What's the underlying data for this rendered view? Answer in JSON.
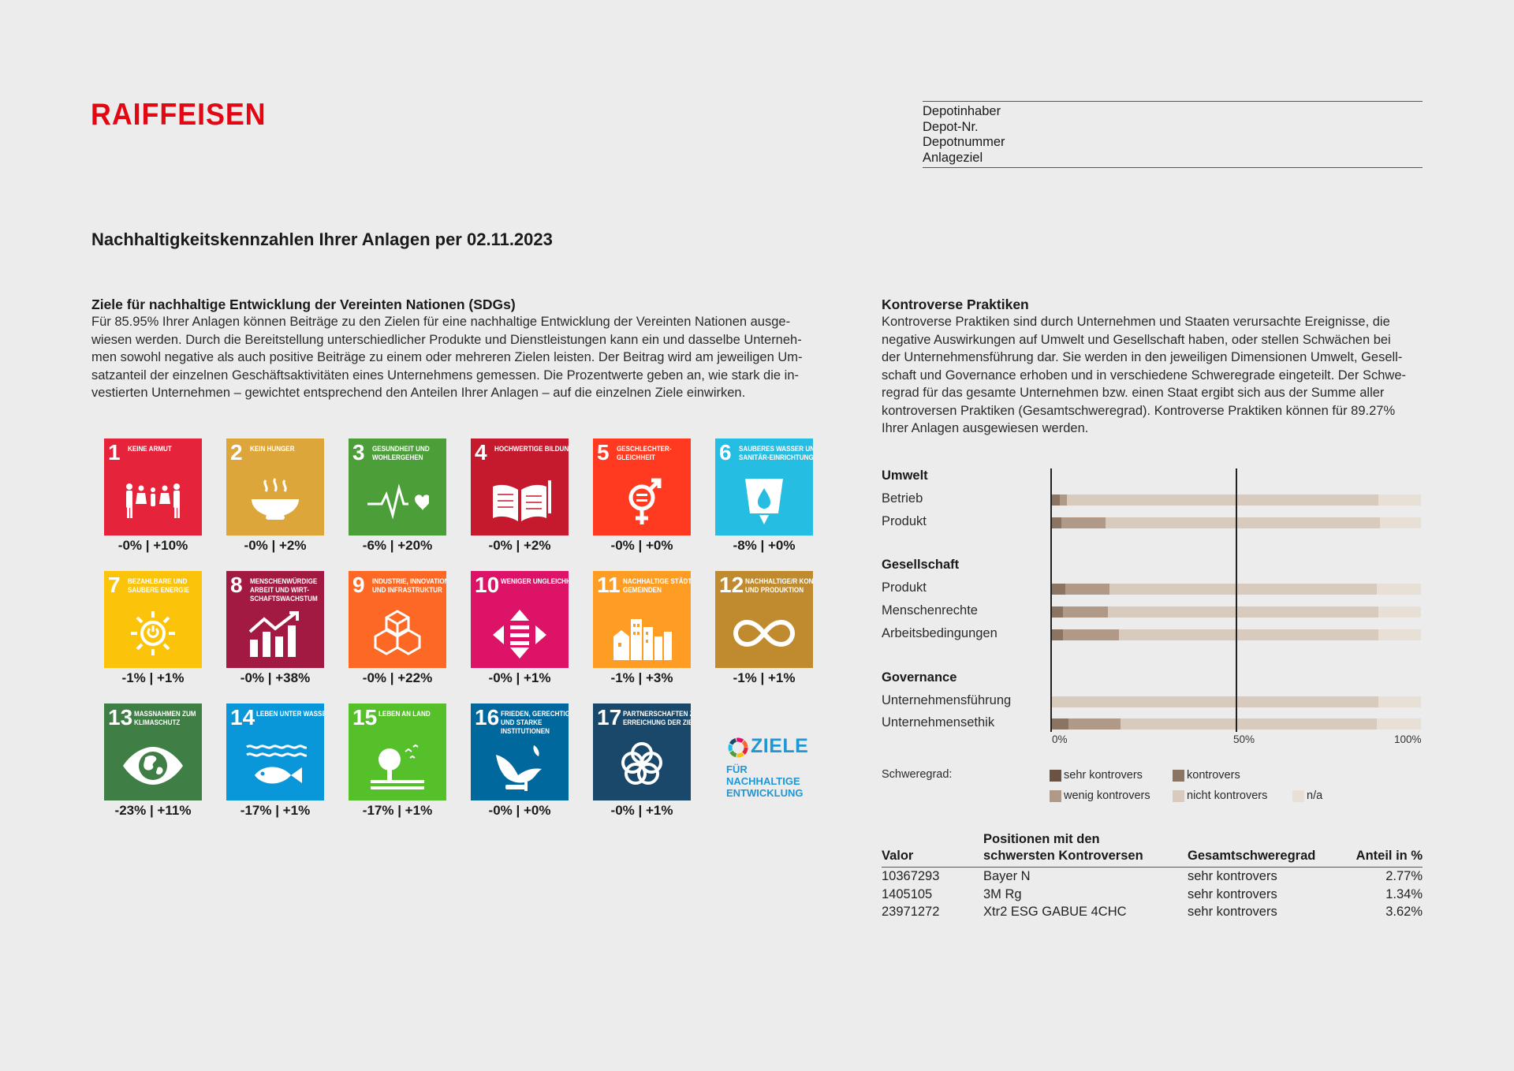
{
  "logo": "RAIFFEISEN",
  "depot": {
    "lines": [
      "Depotinhaber",
      "Depot-Nr.",
      "Depotnummer",
      "Anlageziel"
    ]
  },
  "page_title": "Nachhaltigkeitskennzahlen Ihrer Anlagen per 02.11.2023",
  "sdg": {
    "title": "Ziele für nachhaltige Entwicklung der Vereinten Nationen (SDGs)",
    "text_lines": [
      "Für 85.95% Ihrer Anlagen können Beiträge zu den Zielen für eine nachhaltige Entwicklung der Vereinten Nationen ausge-",
      "wiesen werden. Durch die Bereitstellung unterschiedlicher Produkte und Dienstleistungen kann ein und dasselbe Unterneh-",
      "men sowohl negative als auch positive Beiträge zu einem oder mehreren Zielen leisten. Der Beitrag wird am jeweiligen Um-",
      "satzanteil der einzelnen Geschäftsaktivitäten eines Unternehmens gemessen. Die Prozentwerte geben an, wie stark die in-",
      "vestierten Unternehmen – gewichtet entsprechend den Anteilen Ihrer Anlagen – auf die einzelnen Ziele einwirken."
    ],
    "goals": [
      {
        "num": "1",
        "label": "Keine Armut",
        "color": "#e5243b",
        "icon": "family-icon",
        "value": "-0% | +10%"
      },
      {
        "num": "2",
        "label": "Kein Hunger",
        "color": "#dda63a",
        "icon": "bowl-icon",
        "value": "-0% | +2%"
      },
      {
        "num": "3",
        "label": "Gesundheit und Wohlergehen",
        "color": "#4c9f38",
        "icon": "heartbeat-icon",
        "value": "-6% | +20%"
      },
      {
        "num": "4",
        "label": "Hochwertige Bildung",
        "color": "#c5192d",
        "icon": "book-icon",
        "value": "-0% | +2%"
      },
      {
        "num": "5",
        "label": "Geschlechter-gleichheit",
        "color": "#ff3a21",
        "icon": "gender-icon",
        "value": "-0% | +0%"
      },
      {
        "num": "6",
        "label": "Sauberes Wasser und Sanitär-einrichtungen",
        "color": "#26bde2",
        "icon": "water-icon",
        "value": "-8% | +0%"
      },
      {
        "num": "7",
        "label": "Bezahlbare und saubere Energie",
        "color": "#fcc30b",
        "icon": "sun-icon",
        "value": "-1% | +1%"
      },
      {
        "num": "8",
        "label": "Menschenwürdige Arbeit und Wirt-schaftswachstum",
        "color": "#a21942",
        "icon": "growth-chart-icon",
        "value": "-0% | +38%"
      },
      {
        "num": "9",
        "label": "Industrie, Innovation und Infrastruktur",
        "color": "#fd6925",
        "icon": "cubes-icon",
        "value": "-0% | +22%"
      },
      {
        "num": "10",
        "label": "Weniger Ungleichheiten",
        "color": "#dd1367",
        "icon": "equality-icon",
        "value": "-0% | +1%"
      },
      {
        "num": "11",
        "label": "Nachhaltige Städte und Gemeinden",
        "color": "#fd9d24",
        "icon": "city-icon",
        "value": "-1% | +3%"
      },
      {
        "num": "12",
        "label": "Nachhaltige/r Konsum und Produktion",
        "color": "#bf8b2e",
        "icon": "infinity-icon",
        "value": "-1% | +1%"
      },
      {
        "num": "13",
        "label": "Massnahmen zum Klimaschutz",
        "color": "#3f7e44",
        "icon": "earth-eye-icon",
        "value": "-23% | +11%"
      },
      {
        "num": "14",
        "label": "Leben unter Wasser",
        "color": "#0a97d9",
        "icon": "fish-icon",
        "value": "-17% | +1%"
      },
      {
        "num": "15",
        "label": "Leben an Land",
        "color": "#56c02b",
        "icon": "tree-icon",
        "value": "-17% | +1%"
      },
      {
        "num": "16",
        "label": "Frieden, Gerechtigkeit und starke Institutionen",
        "color": "#00689d",
        "icon": "dove-icon",
        "value": "-0% | +0%"
      },
      {
        "num": "17",
        "label": "Partnerschaften zur Erreichung der Ziele",
        "color": "#19486a",
        "icon": "rings-icon",
        "value": "-0% | +1%"
      }
    ],
    "ziele_logo": {
      "line1": "ZIELE",
      "line2": "FÜR NACHHALTIGE",
      "line3": "ENTWICKLUNG"
    }
  },
  "controversies": {
    "title": "Kontroverse Praktiken",
    "text_lines": [
      "Kontroverse Praktiken sind durch Unternehmen und Staaten verursachte Ereignisse, die",
      "negative Auswirkungen auf Umwelt und Gesellschaft haben, oder stellen Schwächen bei",
      "der Unternehmensführung dar. Sie werden in den jeweiligen Dimensionen Umwelt, Gesell-",
      "schaft und Governance erhoben und in verschiedene Schweregrade eingeteilt. Der Schwe-",
      "regrad für das gesamte Unternehmen bzw. einen Staat ergibt sich aus der Summe aller",
      "kontroversen Praktiken (Gesamtschweregrad). Kontroverse Praktiken können für 89.27%",
      "Ihrer Anlagen ausgewiesen werden."
    ]
  },
  "chart_data": {
    "type": "bar",
    "orientation": "horizontal-stacked",
    "xlim": [
      0,
      100
    ],
    "ticks": [
      "0%",
      "50%",
      "100%"
    ],
    "legend_title": "Schweregrad:",
    "series": [
      {
        "name": "sehr kontrovers",
        "color": "#6b5344"
      },
      {
        "name": "kontrovers",
        "color": "#8c7463"
      },
      {
        "name": "wenig kontrovers",
        "color": "#b09a87"
      },
      {
        "name": "nicht kontrovers",
        "color": "#d8cbbd"
      },
      {
        "name": "n/a",
        "color": "#e8e0d6"
      }
    ],
    "groups": [
      {
        "name": "Umwelt",
        "rows": [
          {
            "label": "Betrieb",
            "values": [
              0.5,
              2,
              2,
              84,
              11.5
            ]
          },
          {
            "label": "Produkt",
            "values": [
              0.5,
              2.5,
              12,
              74,
              11
            ]
          }
        ]
      },
      {
        "name": "Gesellschaft",
        "rows": [
          {
            "label": "Produkt",
            "values": [
              0.5,
              3.5,
              12,
              72,
              12
            ]
          },
          {
            "label": "Menschenrechte",
            "values": [
              0.5,
              3,
              12,
              73,
              11.5
            ]
          },
          {
            "label": "Arbeitsbedingungen",
            "values": [
              0.5,
              3,
              15,
              70,
              11.5
            ]
          }
        ]
      },
      {
        "name": "Governance",
        "rows": [
          {
            "label": "Unternehmensführung",
            "values": [
              0,
              0,
              0.5,
              88,
              11.5
            ]
          },
          {
            "label": "Unternehmensethik",
            "values": [
              0.5,
              4.5,
              14,
              69,
              12
            ]
          }
        ]
      }
    ]
  },
  "table": {
    "headers": {
      "valor": "Valor",
      "position_line1": "Positionen mit den",
      "position_line2": "schwersten Kontroversen",
      "severity": "Gesamtschweregrad",
      "share": "Anteil in %"
    },
    "rows": [
      {
        "valor": "10367293",
        "position": "Bayer N",
        "severity": "sehr kontrovers",
        "share": "2.77%"
      },
      {
        "valor": "1405105",
        "position": "3M Rg",
        "severity": "sehr kontrovers",
        "share": "1.34%"
      },
      {
        "valor": "23971272",
        "position": "Xtr2 ESG GABUE 4CHC",
        "severity": "sehr kontrovers",
        "share": "3.62%"
      }
    ]
  }
}
